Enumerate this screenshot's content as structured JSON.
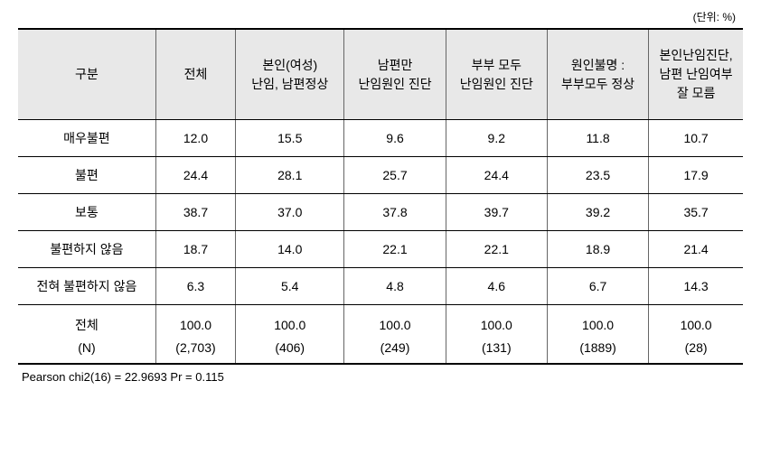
{
  "unit_label": "(단위: %)",
  "columns": [
    "구분",
    "전체",
    "본인(여성)\n난임, 남편정상",
    "남편만\n난임원인 진단",
    "부부 모두\n난임원인 진단",
    "원인불명 :\n부부모두 정상",
    "본인난임진단,\n남편 난임여부\n잘 모름"
  ],
  "rows": [
    {
      "label": "매우불편",
      "values": [
        "12.0",
        "15.5",
        "9.6",
        "9.2",
        "11.8",
        "10.7"
      ]
    },
    {
      "label": "불편",
      "values": [
        "24.4",
        "28.1",
        "25.7",
        "24.4",
        "23.5",
        "17.9"
      ]
    },
    {
      "label": "보통",
      "values": [
        "38.7",
        "37.0",
        "37.8",
        "39.7",
        "39.2",
        "35.7"
      ]
    },
    {
      "label": "불편하지 않음",
      "values": [
        "18.7",
        "14.0",
        "22.1",
        "22.1",
        "18.9",
        "21.4"
      ]
    },
    {
      "label": "전혀 불편하지 않음",
      "values": [
        "6.3",
        "5.4",
        "4.8",
        "4.6",
        "6.7",
        "14.3"
      ]
    }
  ],
  "total_row": {
    "label": "전체",
    "values": [
      "100.0",
      "100.0",
      "100.0",
      "100.0",
      "100.0",
      "100.0"
    ]
  },
  "n_row": {
    "label": "(N)",
    "values": [
      "(2,703)",
      "(406)",
      "(249)",
      "(131)",
      "(1889)",
      "(28)"
    ]
  },
  "footnote": "Pearson  chi2(16)  =    22.9693      Pr  =  0.115",
  "col_widths": [
    "19%",
    "11%",
    "15%",
    "14%",
    "14%",
    "14%",
    "13%"
  ],
  "background_color": "#ffffff",
  "header_bg": "#e8e8e8",
  "border_color": "#000000"
}
